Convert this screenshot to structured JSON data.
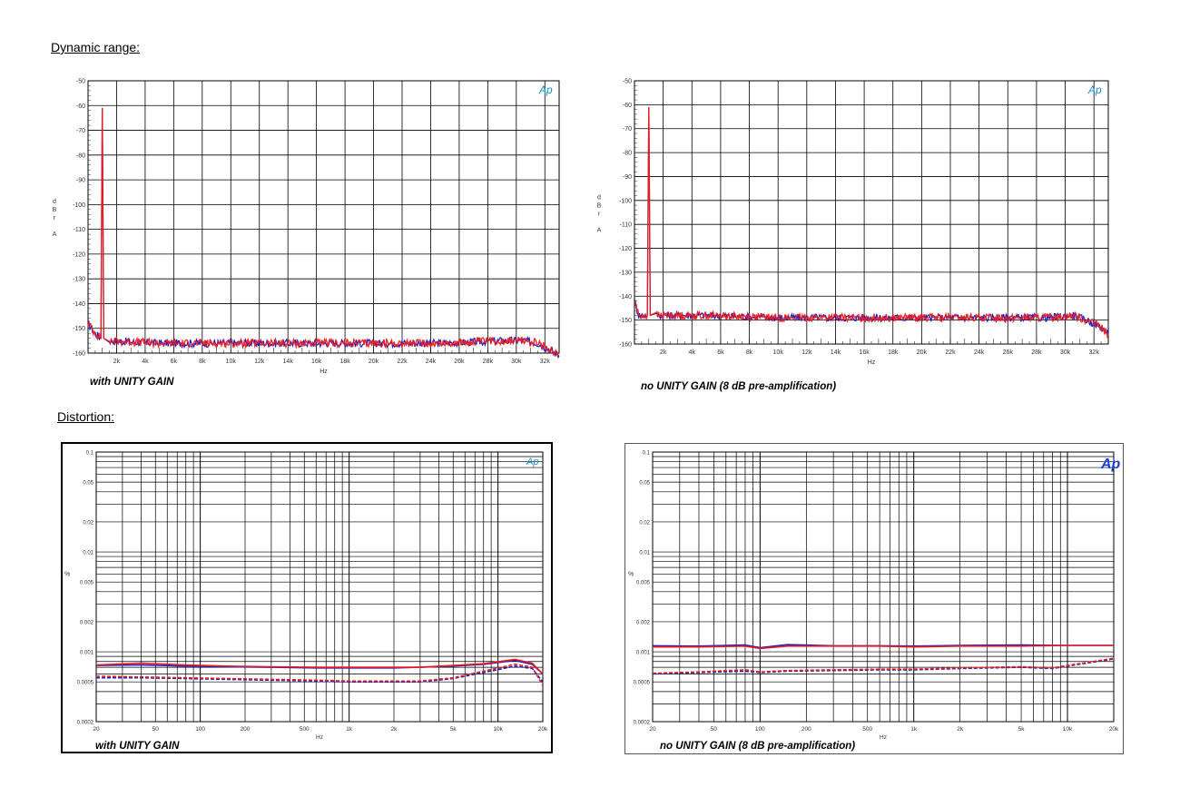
{
  "sections": {
    "dynamic_range_heading": "Dynamic range:",
    "distortion_heading": "Distortion:"
  },
  "colors": {
    "red": "#ee1c1c",
    "blue": "#1c1cc8",
    "logo": "#1a8fc8",
    "logo_bold": "#1a3fd8"
  },
  "chart_data": [
    {
      "id": "dr-unity",
      "type": "line",
      "caption": "with UNITY GAIN",
      "logo": "Ap",
      "xlabel": "Hz",
      "ylabel": [
        "d",
        "B",
        "r",
        "",
        "A"
      ],
      "xlim": [
        0,
        33000
      ],
      "ylim": [
        -160,
        -50
      ],
      "xticks": [
        2000,
        4000,
        6000,
        8000,
        10000,
        12000,
        14000,
        16000,
        18000,
        20000,
        22000,
        24000,
        26000,
        28000,
        30000,
        32000
      ],
      "xtick_labels": [
        "2k",
        "4k",
        "6k",
        "8k",
        "10k",
        "12k",
        "14k",
        "16k",
        "18k",
        "20k",
        "22k",
        "24k",
        "26k",
        "28k",
        "30k",
        "32k"
      ],
      "yticks": [
        -50,
        -60,
        -70,
        -80,
        -90,
        -100,
        -110,
        -120,
        -130,
        -140,
        -150,
        -160
      ],
      "ytick_labels": [
        "-50",
        "-60",
        "-70",
        "-80",
        "-90",
        "-100",
        "-110",
        "-120",
        "-130",
        "-140",
        "-150",
        "-160"
      ],
      "series": [
        {
          "color": "blue",
          "x": [
            0,
            500,
            900,
            1000,
            1100,
            1500,
            5000,
            10000,
            15000,
            20000,
            25000,
            29000,
            30500,
            31500,
            32500,
            33000
          ],
          "y": [
            -148,
            -152,
            -154,
            -61,
            -154,
            -155,
            -156,
            -156,
            -156,
            -156,
            -156,
            -155,
            -155,
            -156,
            -159,
            -161
          ]
        },
        {
          "color": "red",
          "x": [
            0,
            500,
            900,
            1000,
            1100,
            1500,
            5000,
            10000,
            15000,
            20000,
            25000,
            29000,
            30500,
            31500,
            32500,
            33000
          ],
          "y": [
            -148,
            -152,
            -154,
            -61,
            -154,
            -155,
            -156,
            -156,
            -156,
            -156,
            -156,
            -155,
            -155,
            -156,
            -159,
            -161
          ]
        }
      ]
    },
    {
      "id": "dr-nounity",
      "type": "line",
      "caption": "no UNITY GAIN (8 dB pre-amplification)",
      "logo": "Ap",
      "xlabel": "Hz",
      "ylabel": [
        "d",
        "B",
        "r",
        "",
        "A"
      ],
      "xlim": [
        0,
        33000
      ],
      "ylim": [
        -160,
        -50
      ],
      "xticks": [
        2000,
        4000,
        6000,
        8000,
        10000,
        12000,
        14000,
        16000,
        18000,
        20000,
        22000,
        24000,
        26000,
        28000,
        30000,
        32000
      ],
      "xtick_labels": [
        "2k",
        "4k",
        "6k",
        "8k",
        "10k",
        "12k",
        "14k",
        "16k",
        "18k",
        "20k",
        "22k",
        "24k",
        "26k",
        "28k",
        "30k",
        "32k"
      ],
      "yticks": [
        -50,
        -60,
        -70,
        -80,
        -90,
        -100,
        -110,
        -120,
        -130,
        -140,
        -150,
        -160
      ],
      "ytick_labels": [
        "-50",
        "-60",
        "-70",
        "-80",
        "-90",
        "-100",
        "-110",
        "-120",
        "-130",
        "-140",
        "-150",
        "-160"
      ],
      "series": [
        {
          "color": "blue",
          "x": [
            0,
            300,
            700,
            900,
            1000,
            1100,
            1500,
            5000,
            10000,
            15000,
            20000,
            25000,
            29000,
            30500,
            31500,
            32500,
            33000
          ],
          "y": [
            -142,
            -148,
            -148,
            -148,
            -61,
            -148,
            -148,
            -148,
            -149,
            -149,
            -149,
            -149,
            -149,
            -148,
            -150,
            -153,
            -156
          ]
        },
        {
          "color": "red",
          "x": [
            0,
            300,
            700,
            900,
            1000,
            1100,
            1500,
            5000,
            10000,
            15000,
            20000,
            25000,
            29000,
            30500,
            31500,
            32500,
            33000
          ],
          "y": [
            -142,
            -148,
            -148,
            -148,
            -61,
            -148,
            -148,
            -148,
            -149,
            -149,
            -149,
            -149,
            -149,
            -148,
            -150,
            -153,
            -156
          ]
        }
      ]
    },
    {
      "id": "thd-unity",
      "type": "line",
      "caption": "with UNITY GAIN",
      "logo": "Ap",
      "xlabel": "Hz",
      "ylabel": "%",
      "xscale": "log",
      "yscale": "log",
      "xlim": [
        20,
        20000
      ],
      "ylim": [
        0.0002,
        0.1
      ],
      "xtick_labels": [
        "20",
        "50",
        "100",
        "200",
        "500",
        "1k",
        "2k",
        "5k",
        "10k",
        "20k"
      ],
      "xticks": [
        20,
        50,
        100,
        200,
        500,
        1000,
        2000,
        5000,
        10000,
        20000
      ],
      "ytick_labels": [
        "0.1",
        "0.05",
        "0.02",
        "0.01",
        "0.005",
        "0.002",
        "0.001",
        "0.0005",
        "0.0002"
      ],
      "yticks": [
        0.1,
        0.05,
        0.02,
        0.01,
        0.005,
        0.002,
        0.001,
        0.0005,
        0.0002
      ],
      "series": [
        {
          "color": "blue",
          "dash": false,
          "x": [
            20,
            40,
            80,
            150,
            300,
            600,
            1000,
            2000,
            3000,
            5000,
            8000,
            13000,
            17000,
            20000
          ],
          "y": [
            0.00073,
            0.00074,
            0.00072,
            0.00071,
            0.0007,
            0.00069,
            0.00069,
            0.00069,
            0.0007,
            0.00072,
            0.00075,
            0.00082,
            0.00075,
            0.0006
          ]
        },
        {
          "color": "red",
          "dash": false,
          "x": [
            20,
            40,
            80,
            150,
            300,
            600,
            1000,
            2000,
            3000,
            5000,
            8000,
            13000,
            17000,
            20000
          ],
          "y": [
            0.00074,
            0.00077,
            0.00074,
            0.00072,
            0.00071,
            0.0007,
            0.0007,
            0.0007,
            0.0007,
            0.00073,
            0.00076,
            0.00084,
            0.00077,
            0.0006
          ]
        },
        {
          "color": "blue",
          "dash": true,
          "x": [
            20,
            40,
            80,
            150,
            300,
            600,
            1000,
            2000,
            3000,
            5000,
            8000,
            13000,
            17000,
            20000
          ],
          "y": [
            0.00055,
            0.00055,
            0.00054,
            0.00053,
            0.00052,
            0.00051,
            0.0005,
            0.0005,
            0.0005,
            0.00054,
            0.00062,
            0.00072,
            0.00068,
            0.0005
          ]
        },
        {
          "color": "red",
          "dash": true,
          "x": [
            20,
            40,
            80,
            150,
            300,
            600,
            1000,
            2000,
            3000,
            5000,
            8000,
            13000,
            17000,
            20000
          ],
          "y": [
            0.00057,
            0.00056,
            0.00055,
            0.00054,
            0.00053,
            0.00052,
            0.00051,
            0.00051,
            0.00051,
            0.00055,
            0.00064,
            0.00075,
            0.0007,
            0.00046
          ]
        }
      ]
    },
    {
      "id": "thd-nounity",
      "type": "line",
      "caption": "no UNITY GAIN (8 dB pre-amplification)",
      "logo": "Ap",
      "xlabel": "Hz",
      "ylabel": "%",
      "xscale": "log",
      "yscale": "log",
      "xlim": [
        20,
        20000
      ],
      "ylim": [
        0.0002,
        0.1
      ],
      "xtick_labels": [
        "20",
        "50",
        "100",
        "200",
        "500",
        "1k",
        "2k",
        "5k",
        "10k",
        "20k"
      ],
      "xticks": [
        20,
        50,
        100,
        200,
        500,
        1000,
        2000,
        5000,
        10000,
        20000
      ],
      "ytick_labels": [
        "0.1",
        "0.05",
        "0.02",
        "0.01",
        "0.005",
        "0.002",
        "0.001",
        "0.0005",
        "0.0002"
      ],
      "yticks": [
        0.1,
        0.05,
        0.02,
        0.01,
        0.005,
        0.002,
        0.001,
        0.0005,
        0.0002
      ],
      "series": [
        {
          "color": "blue",
          "dash": false,
          "x": [
            20,
            40,
            80,
            100,
            150,
            300,
            600,
            1000,
            2000,
            5000,
            10000,
            20000
          ],
          "y": [
            0.00115,
            0.00114,
            0.00117,
            0.0011,
            0.00118,
            0.00115,
            0.00115,
            0.00114,
            0.00116,
            0.00117,
            0.00116,
            0.00116
          ]
        },
        {
          "color": "red",
          "dash": false,
          "x": [
            20,
            40,
            80,
            100,
            150,
            300,
            600,
            1000,
            2000,
            5000,
            10000,
            20000
          ],
          "y": [
            0.00112,
            0.00112,
            0.00114,
            0.00108,
            0.00114,
            0.00114,
            0.00114,
            0.00112,
            0.00114,
            0.00114,
            0.00116,
            0.00116
          ]
        },
        {
          "color": "blue",
          "dash": true,
          "x": [
            20,
            40,
            80,
            100,
            150,
            300,
            600,
            1000,
            2000,
            5000,
            8000,
            10000,
            20000
          ],
          "y": [
            0.0006,
            0.00062,
            0.00064,
            0.00062,
            0.00064,
            0.00065,
            0.00066,
            0.00066,
            0.00068,
            0.0007,
            0.00068,
            0.00072,
            0.00085
          ]
        },
        {
          "color": "red",
          "dash": true,
          "x": [
            20,
            40,
            80,
            100,
            150,
            300,
            600,
            1000,
            2000,
            5000,
            8000,
            10000,
            20000
          ],
          "y": [
            0.00061,
            0.00063,
            0.00066,
            0.00063,
            0.00065,
            0.00066,
            0.00067,
            0.00067,
            0.00069,
            0.00071,
            0.00069,
            0.00073,
            0.00086
          ]
        }
      ]
    }
  ]
}
